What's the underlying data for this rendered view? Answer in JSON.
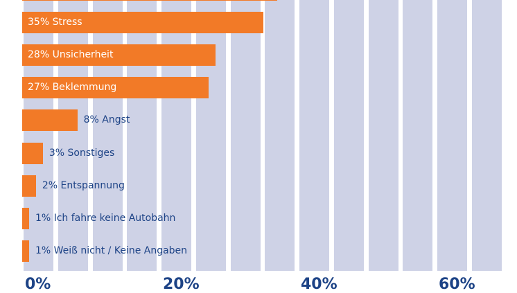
{
  "chart_data": {
    "type": "bar",
    "orientation": "horizontal",
    "categories": [
      "",
      "Stress",
      "Unsicherheit",
      "Beklemmung",
      "Angst",
      "Sonstiges",
      "Entspannung",
      "Ich fahre keine Autobahn",
      "Weiß nicht / Keine Angaben"
    ],
    "values": [
      37,
      35,
      28,
      27,
      8,
      3,
      2,
      1,
      1
    ],
    "data_labels": [
      "",
      "35% Stress",
      "28% Unsicherheit",
      "27% Beklemmung",
      "8% Angst",
      "3% Sonstiges",
      "2% Entspannung",
      "1% Ich fahre keine Autobahn",
      "1% Weiß nicht / Keine Angaben"
    ],
    "x_ticks": [
      "0%",
      "20%",
      "40%",
      "60%"
    ],
    "xlim": [
      0,
      70
    ],
    "grid": true,
    "colors": {
      "bar": "#f27a27",
      "grid": "#ced2e6",
      "text": "#1d4386"
    }
  }
}
